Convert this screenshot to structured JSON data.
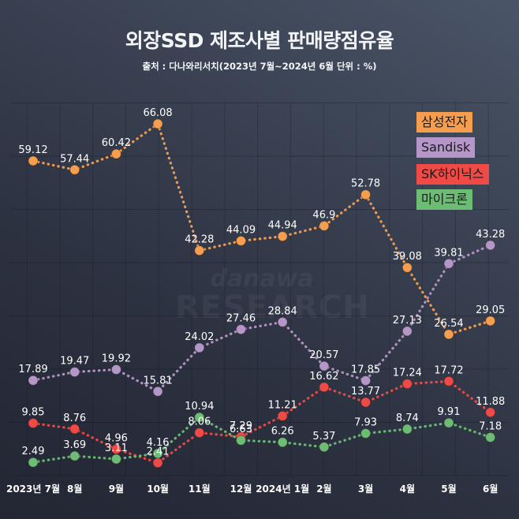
{
  "title": "외장SSD 제조사별 판매량점유율",
  "subtitle": "출처 : 다나와리서치(2023년 7월~2024년 6월 단위 : %)",
  "watermark": {
    "line1": "danawa",
    "line2": "RESEARCH"
  },
  "chart_data": {
    "type": "line",
    "title": "외장SSD 제조사별 판매량점유율",
    "subtitle": "출처 : 다나와리서치(2023년 7월~2024년 6월 단위 : %)",
    "xlabel": "",
    "ylabel": "",
    "unit": "%",
    "ylim": [
      0,
      70
    ],
    "grid": true,
    "legend": "top-right",
    "data_labels": true,
    "categories": [
      "2023년 7월",
      "8월",
      "9월",
      "10월",
      "11월",
      "12월",
      "2024년 1월",
      "2월",
      "3월",
      "4월",
      "5월",
      "6월"
    ],
    "series": [
      {
        "name": "삼성전자",
        "color": "#f59e4f",
        "values": [
          59.12,
          57.44,
          60.42,
          66.08,
          42.28,
          44.09,
          44.94,
          46.9,
          52.78,
          39.08,
          26.54,
          29.05
        ]
      },
      {
        "name": "Sandisk",
        "color": "#b596c8",
        "values": [
          17.89,
          19.47,
          19.92,
          15.81,
          24.02,
          27.46,
          28.84,
          20.57,
          17.85,
          27.13,
          39.81,
          43.28
        ]
      },
      {
        "name": "SK하이닉스",
        "color": "#ef4a45",
        "values": [
          9.85,
          8.76,
          4.96,
          2.41,
          8.06,
          7.29,
          11.21,
          16.62,
          13.77,
          17.24,
          17.72,
          11.88
        ]
      },
      {
        "name": "마이크론",
        "color": "#6dbc75",
        "values": [
          2.49,
          3.69,
          3.11,
          4.16,
          10.94,
          6.63,
          6.26,
          5.37,
          7.93,
          8.74,
          9.91,
          7.18
        ]
      }
    ]
  }
}
